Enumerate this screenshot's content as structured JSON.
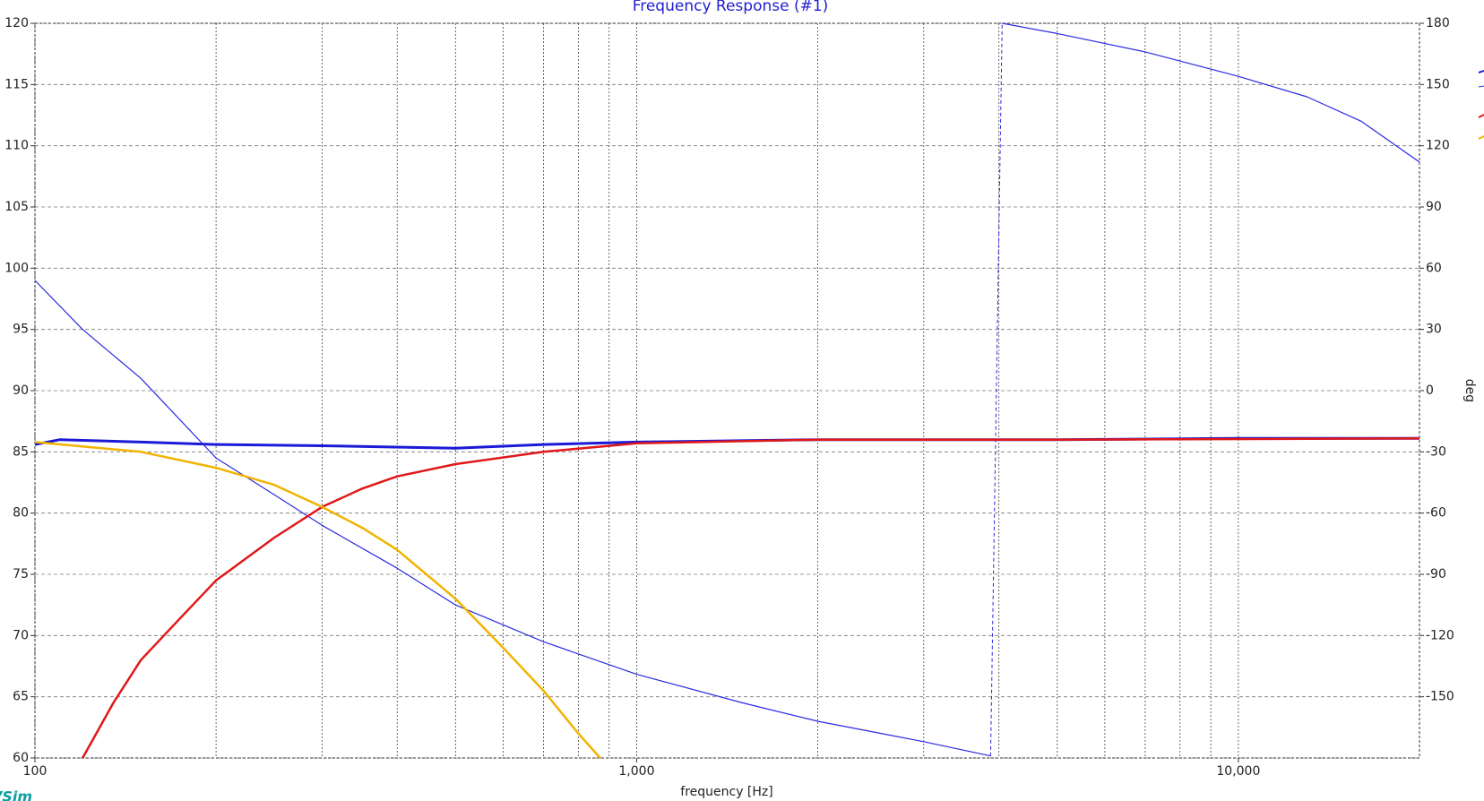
{
  "chart_data": {
    "type": "line",
    "title": "Frequency Response (#1)",
    "x_label": "frequency [Hz]",
    "y2_label": "deg",
    "footer_logo": "VSim",
    "log_x": true,
    "grid": true,
    "xlim": [
      100,
      20000
    ],
    "xticks": [
      100,
      {
        "value": 1000,
        "label": "1,000"
      },
      {
        "value": 10000,
        "label": "10,000"
      }
    ],
    "x_minor_grid": [
      200,
      300,
      400,
      500,
      600,
      700,
      800,
      900,
      2000,
      3000,
      4000,
      5000,
      6000,
      7000,
      8000,
      9000
    ],
    "ylim": [
      60,
      120
    ],
    "yticks": [
      60,
      65,
      70,
      75,
      80,
      85,
      90,
      95,
      100,
      105,
      110,
      115,
      120
    ],
    "y2lim": [
      -180,
      180
    ],
    "y2ticks": [
      -150,
      -120,
      -90,
      -60,
      -30,
      0,
      30,
      60,
      90,
      120,
      150,
      180
    ],
    "series": [
      {
        "color": "#1a1ad8",
        "width": 3,
        "x": [
          100,
          110,
          150,
          200,
          300,
          500,
          700,
          1000,
          2000,
          5000,
          10000,
          20000
        ],
        "values": [
          85.6,
          86.0,
          85.8,
          85.6,
          85.5,
          85.3,
          85.6,
          85.8,
          86.0,
          86.0,
          86.1,
          86.1
        ]
      },
      {
        "color": "#2a2ae0",
        "width": 1.2,
        "axis": "y2",
        "x": [
          100,
          120,
          150,
          200,
          250,
          300,
          400,
          500,
          700,
          1000,
          1500,
          2000,
          3000,
          3875,
          null,
          4050,
          5000,
          7000,
          10000,
          13000,
          16000,
          20000
        ],
        "values": [
          54,
          30,
          6,
          -33,
          -51,
          -66,
          -87,
          -105,
          -123,
          -139,
          -153,
          -162,
          -172,
          -179,
          null,
          180,
          175,
          166,
          154,
          144,
          132,
          112
        ]
      },
      {
        "color": "#e01818",
        "width": 2.5,
        "x": [
          120,
          135,
          150,
          175,
          200,
          250,
          300,
          350,
          400,
          500,
          700,
          1000,
          2000,
          5000,
          20000
        ],
        "values": [
          60,
          64.5,
          68,
          71.5,
          74.5,
          78,
          80.5,
          82,
          83,
          84,
          85,
          85.7,
          86,
          86,
          86.1
        ]
      },
      {
        "color": "#f0b400",
        "width": 2.5,
        "x": [
          100,
          150,
          200,
          250,
          300,
          350,
          400,
          500,
          600,
          700,
          800,
          870
        ],
        "values": [
          85.8,
          85.0,
          83.7,
          82.3,
          80.5,
          78.8,
          77,
          73,
          69,
          65.5,
          62,
          60
        ]
      }
    ]
  }
}
